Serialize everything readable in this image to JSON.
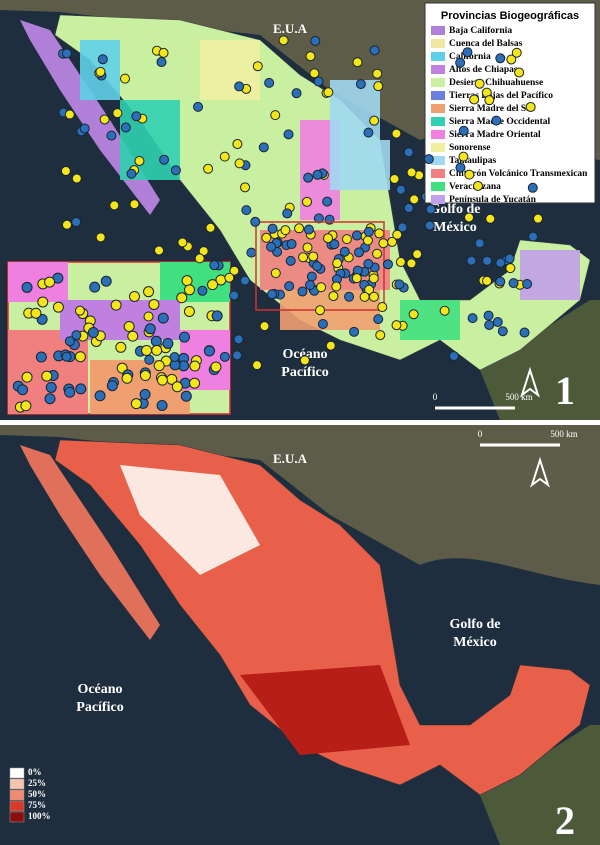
{
  "panels": [
    {
      "number": "1",
      "labels": {
        "usa": "E.U.A",
        "gulf": [
          "Golfo de",
          "México"
        ],
        "pacific": [
          "Océano",
          "Pacífico"
        ]
      },
      "scale": {
        "start": "0",
        "end": "500 km"
      },
      "legend": {
        "title": "Provincias Biogeográficas",
        "items": [
          {
            "label": "Baja California",
            "color": "#b07fd8"
          },
          {
            "label": "Cuenca del Balsas",
            "color": "#f0e6a0"
          },
          {
            "label": "California",
            "color": "#5fd0e8"
          },
          {
            "label": "Altos de Chiapas",
            "color": "#c080e0"
          },
          {
            "label": "Desierto Chihuahuense",
            "color": "#c8f0a0"
          },
          {
            "label": "Tierras Bajas del Pacífico",
            "color": "#6a7fe0"
          },
          {
            "label": "Sierra Madre del Sur",
            "color": "#f0a070"
          },
          {
            "label": "Sierra Madre Occidental",
            "color": "#30d0b0"
          },
          {
            "label": "Sierra Madre Oriental",
            "color": "#f080e0"
          },
          {
            "label": "Sonorense",
            "color": "#f0f0a0"
          },
          {
            "label": "Tamaulipas",
            "color": "#a0d8f0"
          },
          {
            "label": "Cinturón Volcánico Transmexican",
            "color": "#f08080"
          },
          {
            "label": "Veracruzana",
            "color": "#40e080"
          },
          {
            "label": "Península de Yucatán",
            "color": "#c0a0e8"
          }
        ]
      }
    },
    {
      "number": "2",
      "labels": {
        "usa": "E.U.A",
        "gulf": [
          "Golfo de",
          "México"
        ],
        "pacific": [
          "Océano",
          "Pacífico"
        ]
      },
      "scale": {
        "start": "0",
        "end": "500 km"
      },
      "legend": {
        "items": [
          {
            "label": "0%",
            "color": "#ffffff"
          },
          {
            "label": "25%",
            "color": "#f7c4b0"
          },
          {
            "label": "50%",
            "color": "#f08a70"
          },
          {
            "label": "75%",
            "color": "#d63a2a"
          },
          {
            "label": "100%",
            "color": "#8b0d0d"
          }
        ]
      }
    }
  ]
}
